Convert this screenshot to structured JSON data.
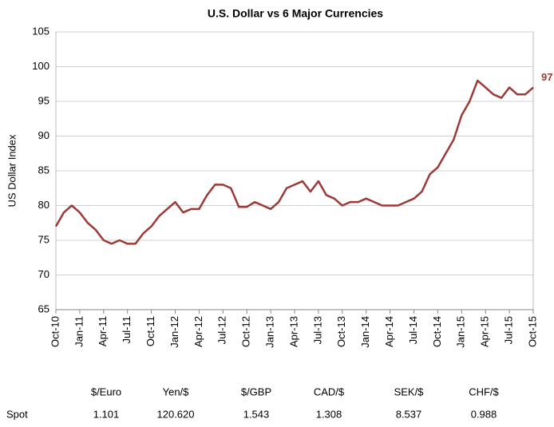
{
  "chart_data": {
    "type": "line",
    "title": "U.S. Dollar vs 6 Major Currencies",
    "y_label": "US Dollar Index",
    "categories": [
      "Oct-10",
      null,
      null,
      "Jan-11",
      null,
      null,
      "Apr-11",
      null,
      null,
      "Jul-11",
      null,
      null,
      "Oct-11",
      null,
      null,
      "Jan-12",
      null,
      null,
      "Apr-12",
      null,
      null,
      "Jul-12",
      null,
      null,
      "Oct-12",
      null,
      null,
      "Jan-13",
      null,
      null,
      "Apr-13",
      null,
      null,
      "Jul-13",
      null,
      null,
      "Oct-13",
      null,
      null,
      "Jan-14",
      null,
      null,
      "Apr-14",
      null,
      null,
      "Jul-14",
      null,
      null,
      "Oct-14",
      null,
      null,
      "Jan-15",
      null,
      null,
      "Apr-15",
      null,
      null,
      "Jul-15",
      null,
      null,
      "Oct-15"
    ],
    "series": [
      {
        "name": "US Dollar Index",
        "color": "#9b3a36",
        "values": [
          77,
          79,
          80,
          79,
          77.5,
          76.5,
          75,
          74.5,
          75,
          74.5,
          74.5,
          76,
          77,
          78.5,
          79.5,
          80.5,
          79,
          79.5,
          79.5,
          81.5,
          83,
          83,
          82.5,
          79.8,
          79.8,
          80.5,
          80,
          79.5,
          80.5,
          82.5,
          83,
          83.5,
          82,
          83.5,
          81.5,
          81,
          80,
          80.5,
          80.5,
          81,
          80.5,
          80,
          80,
          80,
          80.5,
          81,
          82,
          84.5,
          85.5,
          87.5,
          89.5,
          93,
          95,
          98,
          97,
          96,
          95.5,
          97,
          96,
          96,
          97
        ]
      }
    ],
    "end_label": "97",
    "ylim": [
      65,
      105
    ],
    "yticks": [
      65,
      70,
      75,
      80,
      85,
      90,
      95,
      100,
      105
    ],
    "grid": true
  },
  "table": {
    "header": [
      "$/Euro",
      "Yen/$",
      "$/GBP",
      "CAD/$",
      "SEK/$",
      "CHF/$"
    ],
    "row_label": "Spot",
    "row": [
      "1.101",
      "120.620",
      "1.543",
      "1.308",
      "8.537",
      "0.988"
    ]
  }
}
